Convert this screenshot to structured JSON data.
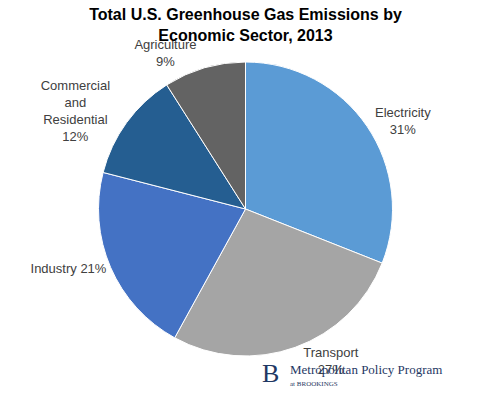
{
  "chart_data": {
    "type": "pie",
    "title": "Total U.S. Greenhouse Gas Emissions by Economic Sector, 2013",
    "categories": [
      "Electricity",
      "Transport",
      "Industry",
      "Commercial and Residential",
      "Agriculture"
    ],
    "values": [
      31,
      27,
      21,
      12,
      9
    ],
    "value_labels": [
      "Electricity 31%",
      "Transport 27%",
      "Industry 21%",
      "Commercial and Residential 12%",
      "Agriculture 9%"
    ],
    "colors": [
      "#5b9bd5",
      "#a5a5a5",
      "#4472c4",
      "#255e91",
      "#636363"
    ],
    "data_labels": true,
    "logo": {
      "mark": "B",
      "text": "Metropolitan Policy Program",
      "subtext": "at BROOKINGS"
    }
  }
}
